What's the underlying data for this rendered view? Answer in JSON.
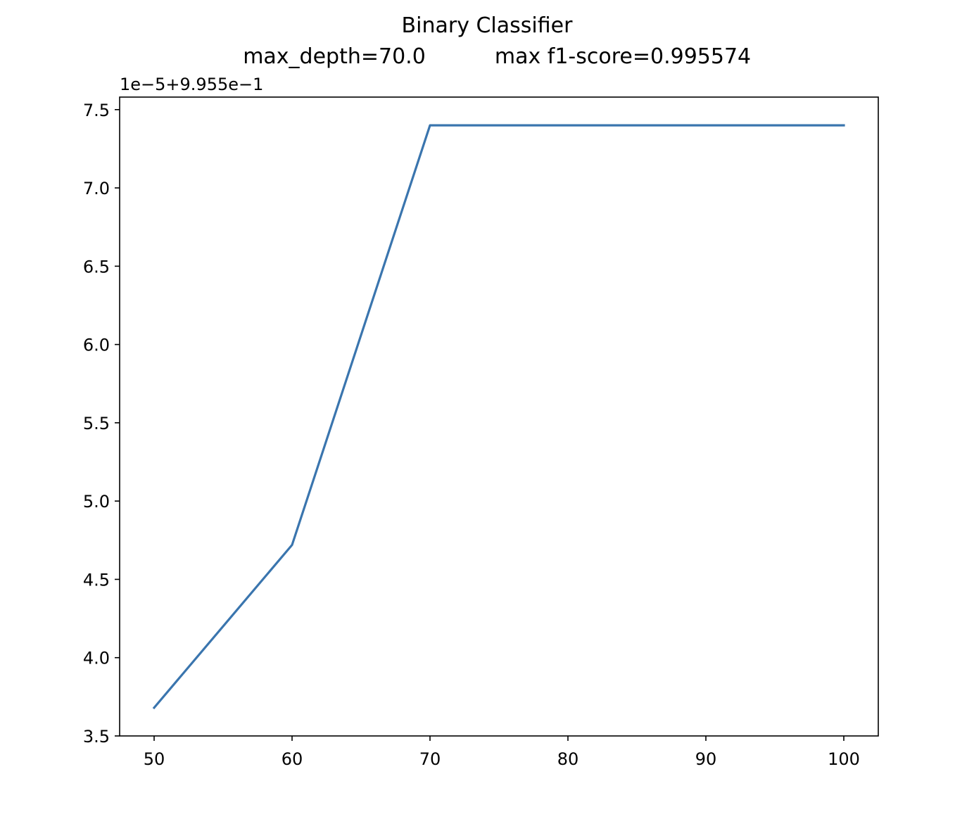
{
  "chart_data": {
    "type": "line",
    "title": "Binary Classifier",
    "subtitle_left": "max_depth=70.0",
    "subtitle_right": "max f1-score=0.995574",
    "y_offset_label": "1e−5+9.955e−1",
    "xlabel": "",
    "ylabel": "",
    "xlim": [
      47.5,
      102.5
    ],
    "ylim": [
      3.5,
      7.58
    ],
    "x_ticks": [
      50,
      60,
      70,
      80,
      90,
      100
    ],
    "x_tick_labels": [
      "50",
      "60",
      "70",
      "80",
      "90",
      "100"
    ],
    "y_ticks": [
      3.5,
      4.0,
      4.5,
      5.0,
      5.5,
      6.0,
      6.5,
      7.0,
      7.5
    ],
    "y_tick_labels": [
      "3.5",
      "4.0",
      "4.5",
      "5.0",
      "5.5",
      "6.0",
      "6.5",
      "7.0",
      "7.5"
    ],
    "grid": false,
    "series": [
      {
        "color": "#3a75ae",
        "x": [
          50,
          60,
          70,
          80,
          90,
          100
        ],
        "y": [
          3.68,
          4.72,
          7.4,
          7.4,
          7.4,
          7.4
        ]
      }
    ]
  }
}
